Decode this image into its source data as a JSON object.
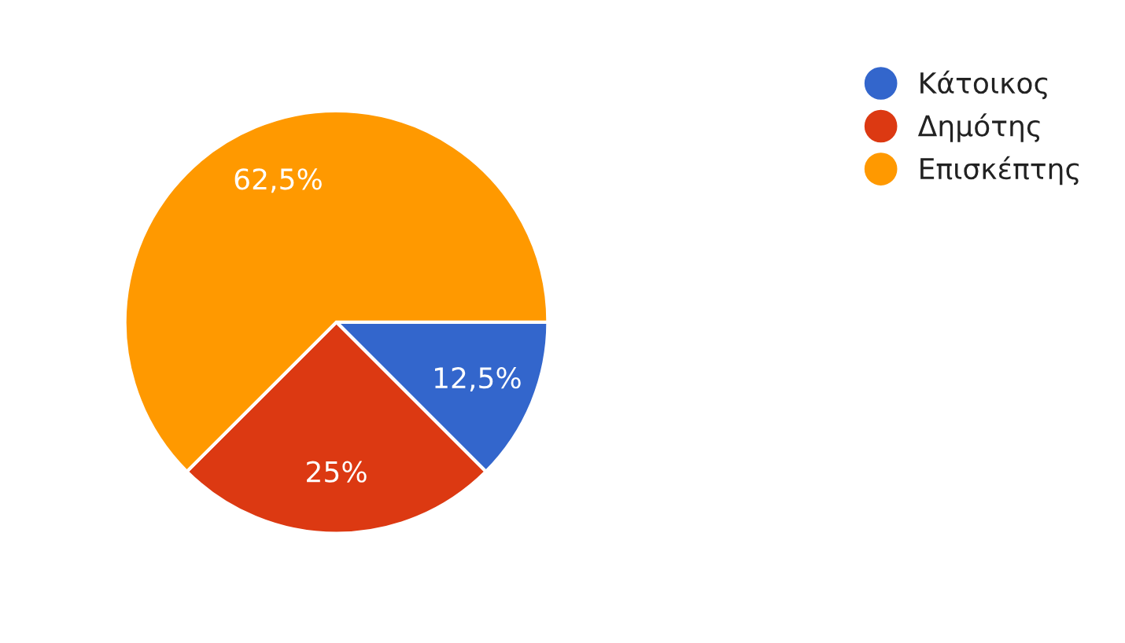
{
  "chart_data": {
    "type": "pie",
    "categories": [
      "Κάτοικος",
      "Δημότης",
      "Επισκέπτης"
    ],
    "values": [
      12.5,
      25,
      62.5
    ],
    "colors": [
      "#3366cc",
      "#dc3912",
      "#ff9900"
    ],
    "value_labels": [
      "12,5%",
      "25%",
      "62,5%"
    ],
    "legend": "right"
  }
}
